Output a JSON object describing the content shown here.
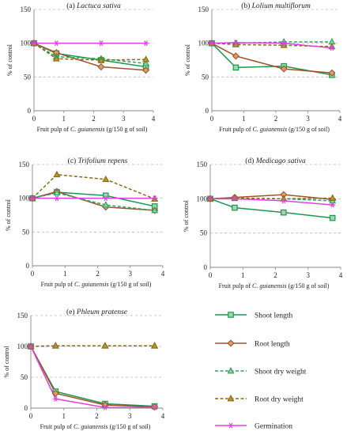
{
  "colors": {
    "shoot_length": "#1a9850",
    "root_length": "#a0522d",
    "shoot_dry_weight": "#2ca25f",
    "root_dry_weight": "#8b6914",
    "germination": "#e040e0",
    "grid": "#bbbbbb",
    "axis": "#888888"
  },
  "legend": {
    "placement": "bottom-right",
    "items": [
      {
        "key": "shoot_length",
        "label": "Shoot length",
        "marker": "square",
        "dash": "solid"
      },
      {
        "key": "root_length",
        "label": "Root length",
        "marker": "diamond",
        "dash": "solid"
      },
      {
        "key": "shoot_dry_weight",
        "label": "Shoot dry weight",
        "marker": "triangle",
        "dash": "dashed"
      },
      {
        "key": "root_dry_weight",
        "label": "Root dry weight",
        "marker": "triangle",
        "dash": "dashed"
      },
      {
        "key": "germination",
        "label": "Germination",
        "marker": "asterisk",
        "dash": "solid"
      }
    ]
  },
  "chart_data": [
    {
      "type": "line",
      "title_prefix": "(a) ",
      "title_species": "Lactuca sativa",
      "xlabel_pre": "Fruit pulp of ",
      "xlabel_species": "C. guianensis",
      "xlabel_post": " (g/150 g of soil)",
      "ylabel": "% of control",
      "xlim": [
        0,
        4
      ],
      "ylim": [
        0,
        150
      ],
      "xticks": [
        "0",
        "1",
        "2",
        "3",
        "4"
      ],
      "yticks": [
        "0",
        "50",
        "100",
        "150"
      ],
      "grid": "horizontal-dashed",
      "x": [
        0,
        0.75,
        2.25,
        3.75
      ],
      "series": [
        {
          "key": "shoot_length",
          "values": [
            100,
            85,
            75,
            65
          ]
        },
        {
          "key": "root_length",
          "values": [
            100,
            86,
            65,
            60
          ]
        },
        {
          "key": "shoot_dry_weight",
          "values": [
            100,
            80,
            77,
            70
          ]
        },
        {
          "key": "root_dry_weight",
          "values": [
            100,
            77,
            75,
            76
          ]
        },
        {
          "key": "germination",
          "values": [
            100,
            100,
            100,
            100
          ]
        }
      ]
    },
    {
      "type": "line",
      "title_prefix": "(b) ",
      "title_species": "Lolium multiflorum",
      "xlabel_pre": "Fruit pulp of ",
      "xlabel_species": "C. guianensis",
      "xlabel_post": " (g/150 g of soil)",
      "ylabel": "% of control",
      "xlim": [
        0,
        4
      ],
      "ylim": [
        0,
        150
      ],
      "xticks": [
        "0",
        "1",
        "2",
        "3",
        "4"
      ],
      "yticks": [
        "0",
        "50",
        "100",
        "150"
      ],
      "grid": "horizontal-dashed",
      "x": [
        0,
        0.75,
        2.25,
        3.75
      ],
      "series": [
        {
          "key": "shoot_length",
          "values": [
            100,
            64,
            66,
            53
          ]
        },
        {
          "key": "root_length",
          "values": [
            100,
            81,
            62,
            56
          ]
        },
        {
          "key": "shoot_dry_weight",
          "values": [
            100,
            100,
            102,
            102
          ]
        },
        {
          "key": "root_dry_weight",
          "values": [
            100,
            98,
            97,
            95
          ]
        },
        {
          "key": "germination",
          "values": [
            100,
            101,
            100,
            93
          ]
        }
      ]
    },
    {
      "type": "line",
      "title_prefix": "(c) ",
      "title_species": "Trifolium repens",
      "xlabel_pre": "Fruit pulp of ",
      "xlabel_species": "C. guianensis",
      "xlabel_post": " (g/150 g of soil)",
      "ylabel": "% of control",
      "xlim": [
        0,
        4
      ],
      "ylim": [
        0,
        150
      ],
      "xticks": [
        "0",
        "1",
        "2",
        "3",
        "4"
      ],
      "yticks": [
        "0",
        "50",
        "100",
        "150"
      ],
      "grid": "horizontal-dashed",
      "x": [
        0,
        0.75,
        2.25,
        3.75
      ],
      "series": [
        {
          "key": "shoot_length",
          "values": [
            100,
            109,
            104,
            88
          ]
        },
        {
          "key": "root_length",
          "values": [
            100,
            110,
            87,
            82
          ]
        },
        {
          "key": "shoot_dry_weight",
          "values": [
            100,
            108,
            90,
            82
          ]
        },
        {
          "key": "root_dry_weight",
          "values": [
            100,
            135,
            128,
            99
          ]
        },
        {
          "key": "germination",
          "values": [
            100,
            100,
            100,
            100
          ]
        }
      ]
    },
    {
      "type": "line",
      "title_prefix": "(d) ",
      "title_species": "Medicago sativa",
      "xlabel_pre": "Fruit pulp of ",
      "xlabel_species": "C. guianensis",
      "xlabel_post": " (g/150 g of soil)",
      "ylabel": "% of control",
      "xlim": [
        0,
        4
      ],
      "ylim": [
        0,
        150
      ],
      "xticks": [
        "0",
        "1",
        "2",
        "3",
        "4"
      ],
      "yticks": [
        "0",
        "50",
        "100",
        "150"
      ],
      "grid": "horizontal-dashed",
      "x": [
        0,
        0.75,
        2.25,
        3.75
      ],
      "series": [
        {
          "key": "shoot_length",
          "values": [
            100,
            87,
            80,
            72
          ]
        },
        {
          "key": "root_length",
          "values": [
            100,
            102,
            106,
            99
          ]
        },
        {
          "key": "shoot_dry_weight",
          "values": [
            100,
            101,
            100,
            97
          ]
        },
        {
          "key": "root_dry_weight",
          "values": [
            100,
            101,
            100,
            101
          ]
        },
        {
          "key": "germination",
          "values": [
            100,
            100,
            97,
            91
          ]
        }
      ]
    },
    {
      "type": "line",
      "title_prefix": "(e) ",
      "title_species": "Phleum pratense",
      "xlabel_pre": "Fruit pulp of ",
      "xlabel_species": "C. guianensis",
      "xlabel_post": " (g/150 g of soil)",
      "ylabel": "% of control",
      "xlim": [
        0,
        4
      ],
      "ylim": [
        0,
        150
      ],
      "xticks": [
        "0",
        "1",
        "2",
        "3",
        "4"
      ],
      "yticks": [
        "0",
        "50",
        "100",
        "150"
      ],
      "grid": "horizontal-dashed",
      "x": [
        0,
        0.75,
        2.25,
        3.75
      ],
      "series": [
        {
          "key": "shoot_length",
          "values": [
            100,
            27,
            7,
            3
          ]
        },
        {
          "key": "root_length",
          "values": [
            100,
            24,
            5,
            2
          ]
        },
        {
          "key": "shoot_dry_weight",
          "values": [
            100,
            101,
            101,
            101
          ]
        },
        {
          "key": "root_dry_weight",
          "values": [
            100,
            101,
            101,
            101
          ]
        },
        {
          "key": "germination",
          "values": [
            100,
            15,
            1,
            1
          ]
        }
      ]
    }
  ]
}
